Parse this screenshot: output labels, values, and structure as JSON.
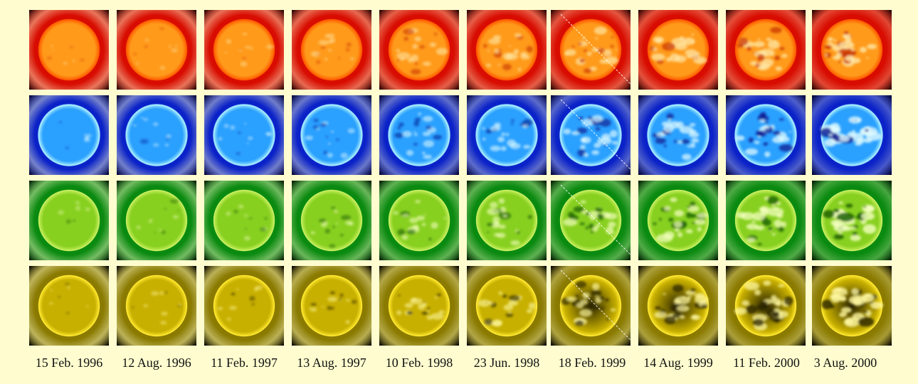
{
  "columns": [
    {
      "date": "15 Feb. 1996",
      "activity": 0.05,
      "roll": 0
    },
    {
      "date": "12 Aug. 1996",
      "activity": 0.12,
      "roll": 0
    },
    {
      "date": "11 Feb. 1997",
      "activity": 0.15,
      "roll": 0
    },
    {
      "date": "13 Aug. 1997",
      "activity": 0.3,
      "roll": 0
    },
    {
      "date": "10 Feb. 1998",
      "activity": 0.5,
      "roll": 0
    },
    {
      "date": "23 Jun. 1998",
      "activity": 0.55,
      "roll": 0
    },
    {
      "date": "18 Feb. 1999",
      "activity": 0.7,
      "roll": 1
    },
    {
      "date": "14 Aug. 1999",
      "activity": 0.8,
      "roll": 0
    },
    {
      "date": "11 Feb. 2000",
      "activity": 0.85,
      "roll": 0
    },
    {
      "date": "3 Aug. 2000",
      "activity": 1.0,
      "roll": 0
    }
  ],
  "rows": [
    {
      "name": "red",
      "corona": "#d80c00",
      "disk": "#ff9a1a",
      "edge": "#ff5a00",
      "bright": "#ffe9a8",
      "dark": "#c83200",
      "bg": "#200000"
    },
    {
      "name": "blue",
      "corona": "#0a22c8",
      "disk": "#2aa0ff",
      "edge": "#9ee8ff",
      "bright": "#e0fbff",
      "dark": "#0a1a90",
      "bg": "#000030"
    },
    {
      "name": "green",
      "corona": "#0a8a10",
      "disk": "#88d020",
      "edge": "#c8f060",
      "bright": "#f4ffc0",
      "dark": "#155a08",
      "bg": "#001800"
    },
    {
      "name": "yellow",
      "corona": "#8a7a00",
      "disk": "#c8b000",
      "edge": "#ffe830",
      "bright": "#fff8a0",
      "dark": "#2a2400",
      "bg": "#000000"
    }
  ]
}
